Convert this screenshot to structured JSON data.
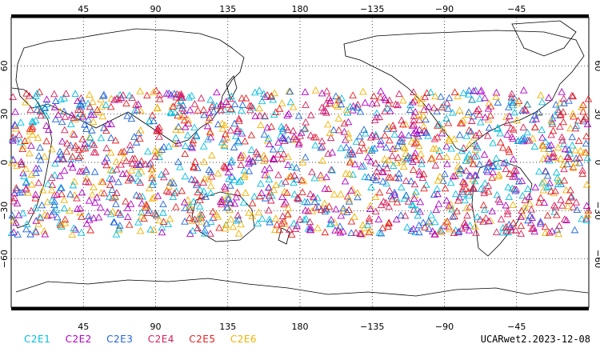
{
  "map": {
    "projection": "cylindrical-equidistant",
    "center_longitude": 180,
    "lat_range": [
      -90,
      90
    ],
    "x_ticks_top": [
      "45",
      "90",
      "135",
      "180",
      "−135",
      "−90",
      "−45"
    ],
    "x_ticks_bottom": [
      "45",
      "90",
      "135",
      "180",
      "−135",
      "−90",
      "−45"
    ],
    "x_tick_lons": [
      45,
      90,
      135,
      180,
      225,
      270,
      315
    ],
    "y_ticks": [
      "60",
      "30",
      "0",
      "−30",
      "−60"
    ],
    "y_tick_lats": [
      60,
      30,
      0,
      -30,
      -60
    ],
    "grid": true,
    "marker_shape": "open-triangle",
    "occultation_lat_band": [
      -45,
      45
    ]
  },
  "legend": {
    "items": [
      {
        "label": "C2E1",
        "color": "#00bfe0"
      },
      {
        "label": "C2E2",
        "color": "#b000c8"
      },
      {
        "label": "C2E3",
        "color": "#1e64dc"
      },
      {
        "label": "C2E4",
        "color": "#d81e5a"
      },
      {
        "label": "C2E5",
        "color": "#e61e1e"
      },
      {
        "label": "C2E6",
        "color": "#f2b200"
      }
    ]
  },
  "footer": {
    "label": "UCARwet2.2023-12-08"
  }
}
